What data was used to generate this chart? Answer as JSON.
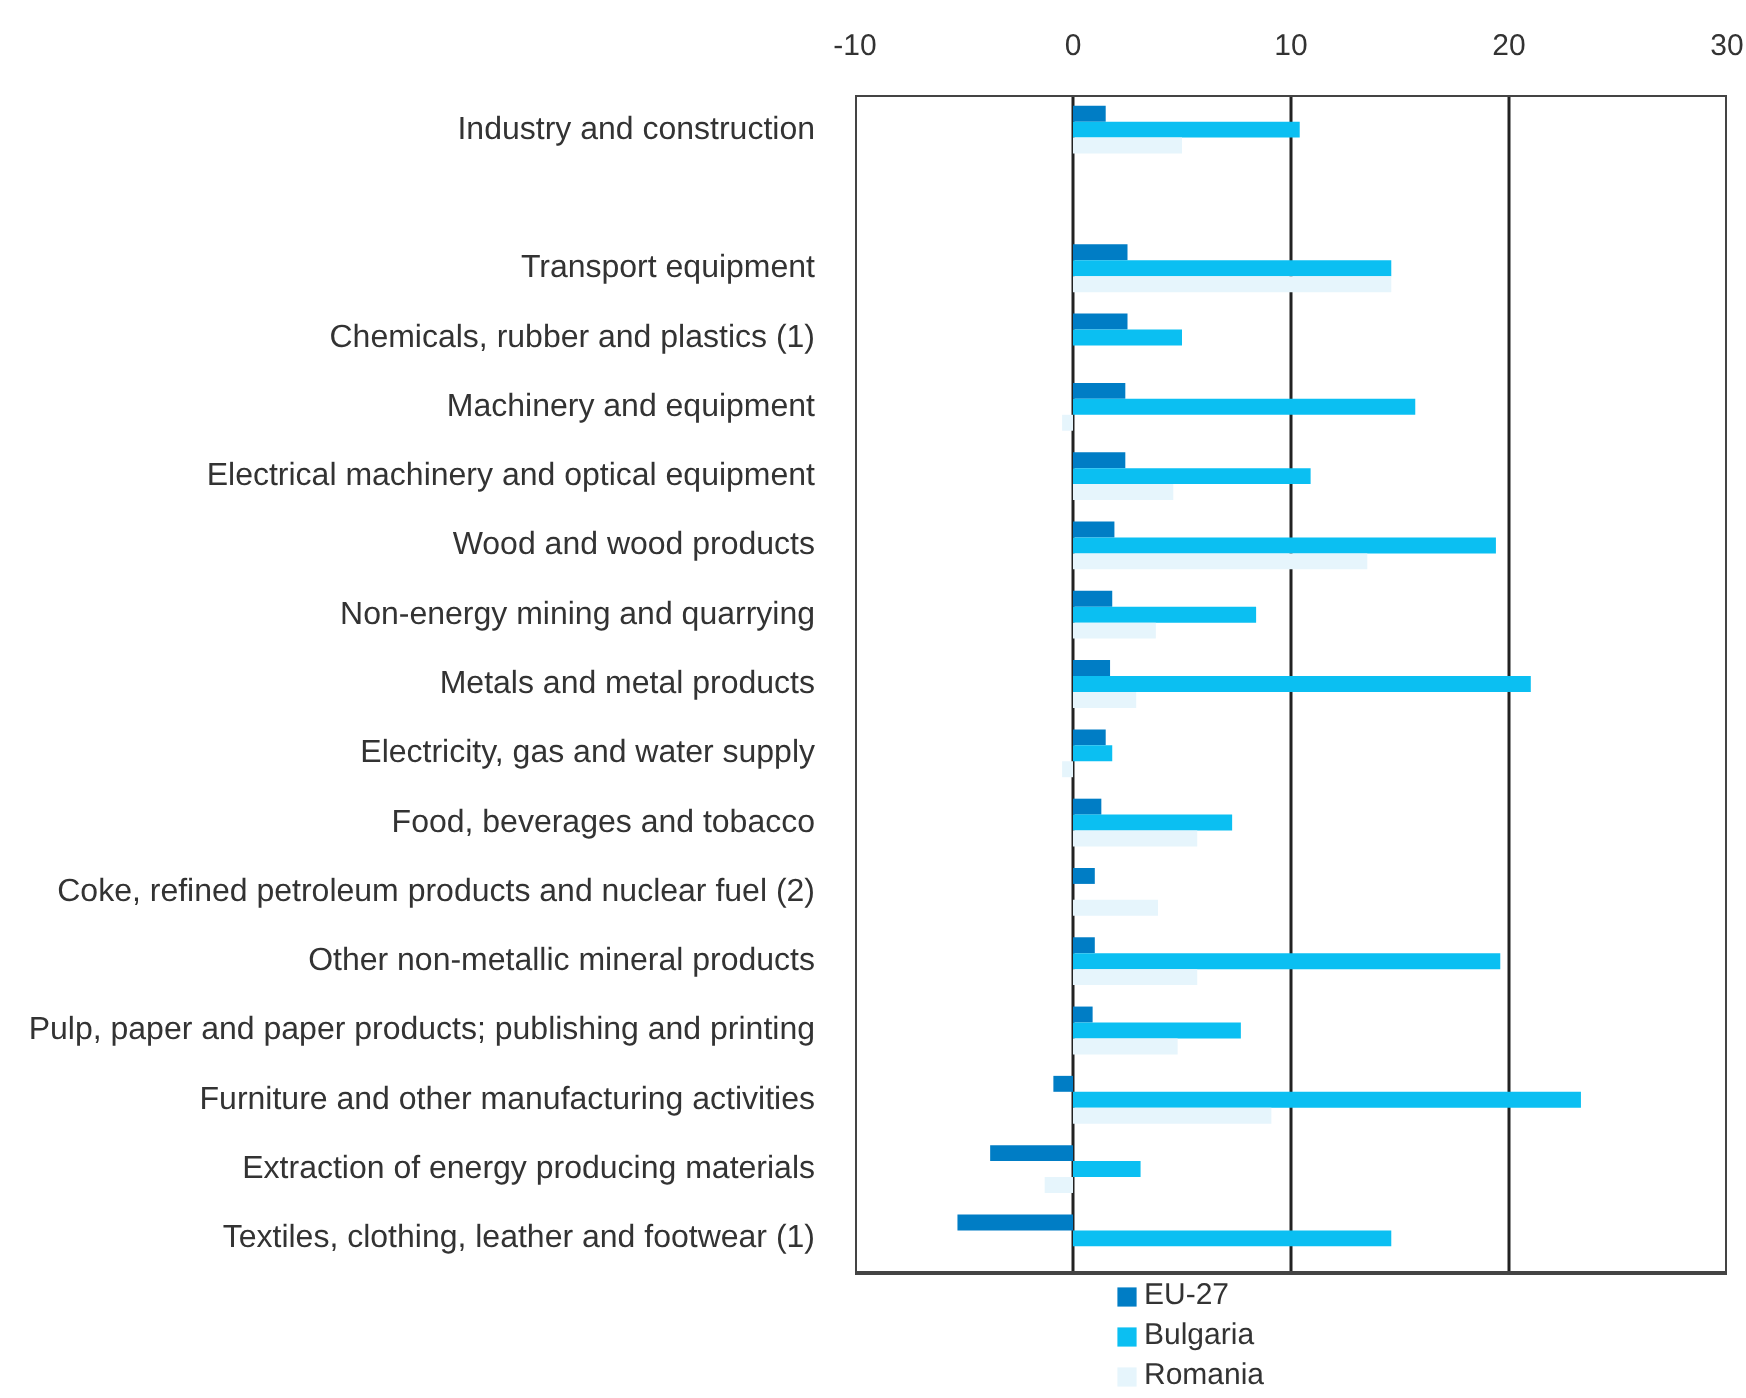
{
  "chart_data": {
    "type": "bar",
    "orientation": "horizontal",
    "categories": [
      "Industry and construction",
      null,
      "Transport equipment",
      "Chemicals, rubber and plastics (1)",
      "Machinery and equipment",
      "Electrical machinery and optical equipment",
      "Wood and wood products",
      "Non-energy mining and quarrying",
      "Metals and metal products",
      "Electricity, gas and water supply",
      "Food, beverages and tobacco",
      "Coke, refined petroleum products and nuclear fuel (2)",
      "Other non-metallic mineral products",
      "Pulp, paper and paper products; publishing and printing",
      "Furniture and other manufacturing activities",
      "Extraction of energy producing materials",
      "Textiles, clothing, leather and footwear (1)"
    ],
    "series": [
      {
        "name": "EU-27",
        "color": "#007dc5",
        "values": [
          1.5,
          null,
          2.5,
          2.5,
          2.4,
          2.4,
          1.9,
          1.8,
          1.7,
          1.5,
          1.3,
          1.0,
          1.0,
          0.9,
          -0.9,
          -3.8,
          -5.3
        ]
      },
      {
        "name": "Bulgaria",
        "color": "#0bbff2",
        "values": [
          10.4,
          null,
          14.6,
          5.0,
          15.7,
          10.9,
          19.4,
          8.4,
          21.0,
          1.8,
          7.3,
          null,
          19.6,
          7.7,
          23.3,
          3.1,
          14.6
        ]
      },
      {
        "name": "Romania",
        "color": "#e6f5fc",
        "values": [
          5.0,
          null,
          14.6,
          null,
          -0.5,
          4.6,
          13.5,
          3.8,
          2.9,
          -0.5,
          5.7,
          3.9,
          5.7,
          4.8,
          9.1,
          -1.3,
          null
        ]
      }
    ],
    "xlim": [
      -10,
      30
    ],
    "xticks": [
      -10,
      0,
      10,
      20,
      30
    ],
    "grid": "x",
    "legend": "bottom"
  }
}
